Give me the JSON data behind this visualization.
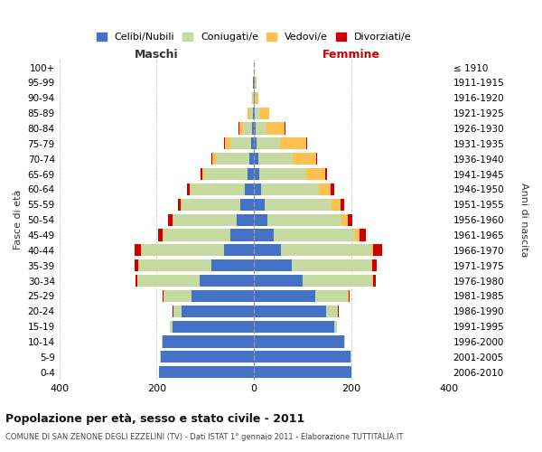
{
  "age_groups": [
    "0-4",
    "5-9",
    "10-14",
    "15-19",
    "20-24",
    "25-29",
    "30-34",
    "35-39",
    "40-44",
    "45-49",
    "50-54",
    "55-59",
    "60-64",
    "65-69",
    "70-74",
    "75-79",
    "80-84",
    "85-89",
    "90-94",
    "95-99",
    "100+"
  ],
  "birth_years": [
    "2006-2010",
    "2001-2005",
    "1996-2000",
    "1991-1995",
    "1986-1990",
    "1981-1985",
    "1976-1980",
    "1971-1975",
    "1966-1970",
    "1961-1965",
    "1956-1960",
    "1951-1955",
    "1946-1950",
    "1941-1945",
    "1936-1940",
    "1931-1935",
    "1926-1930",
    "1921-1925",
    "1916-1920",
    "1911-1915",
    "≤ 1910"
  ],
  "males": {
    "celibi": [
      195,
      192,
      188,
      168,
      148,
      128,
      112,
      88,
      62,
      48,
      36,
      28,
      18,
      14,
      10,
      6,
      4,
      2,
      1,
      2,
      0
    ],
    "coniugati": [
      0,
      2,
      2,
      5,
      18,
      58,
      128,
      148,
      168,
      138,
      130,
      120,
      112,
      88,
      68,
      42,
      18,
      8,
      2,
      1,
      0
    ],
    "vedovi": [
      0,
      0,
      0,
      0,
      0,
      0,
      0,
      1,
      2,
      2,
      2,
      2,
      2,
      4,
      8,
      12,
      8,
      4,
      1,
      0,
      0
    ],
    "divorziati": [
      0,
      0,
      0,
      0,
      1,
      2,
      4,
      8,
      14,
      10,
      8,
      7,
      5,
      3,
      2,
      1,
      1,
      0,
      0,
      0,
      0
    ]
  },
  "females": {
    "nubili": [
      200,
      198,
      185,
      165,
      148,
      125,
      100,
      78,
      55,
      40,
      28,
      22,
      15,
      10,
      8,
      5,
      3,
      2,
      1,
      2,
      0
    ],
    "coniugate": [
      0,
      2,
      2,
      5,
      25,
      68,
      142,
      162,
      185,
      168,
      152,
      138,
      118,
      98,
      72,
      48,
      22,
      10,
      3,
      1,
      0
    ],
    "vedove": [
      0,
      0,
      0,
      0,
      0,
      1,
      2,
      2,
      5,
      8,
      12,
      18,
      25,
      38,
      48,
      55,
      38,
      20,
      5,
      2,
      0
    ],
    "divorziate": [
      0,
      0,
      0,
      0,
      1,
      2,
      6,
      10,
      18,
      14,
      10,
      8,
      6,
      4,
      2,
      2,
      1,
      0,
      0,
      0,
      0
    ]
  },
  "colors": {
    "celibi_nubili": "#4472c4",
    "coniugati": "#c5d9a0",
    "vedovi": "#ffc04d",
    "divorziati": "#cc0000"
  },
  "xlim": 400,
  "title": "Popolazione per età, sesso e stato civile - 2011",
  "subtitle": "COMUNE DI SAN ZENONE DEGLI EZZELINI (TV) - Dati ISTAT 1° gennaio 2011 - Elaborazione TUTTITALIA.IT",
  "ylabel_left": "Fasce di età",
  "ylabel_right": "Anni di nascita",
  "xlabel_left": "Maschi",
  "xlabel_right": "Femmine",
  "bg_color": "#ffffff",
  "grid_color": "#cccccc"
}
